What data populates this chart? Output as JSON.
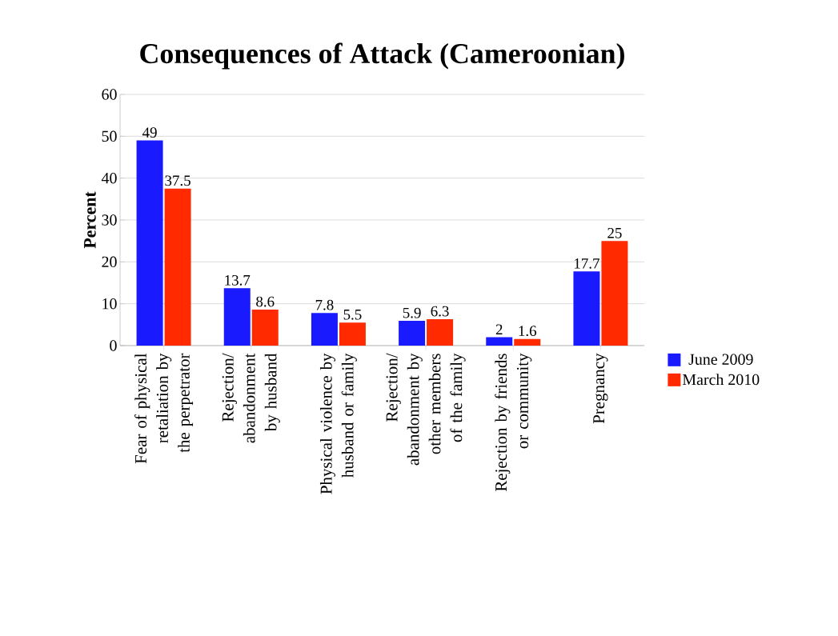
{
  "chart_data": {
    "type": "bar",
    "title": "Consequences of Attack (Cameroonian)",
    "ylabel": "Percent",
    "categories": [
      "Fear of physical retaliation by the perpetrator",
      "Rejection/ abandonment by husband",
      "Physical violence by husband or family",
      "Rejection/ abandonment by other members of the family",
      "Rejection by friends or community",
      "Pregnancy"
    ],
    "series": [
      {
        "name": "June 2009",
        "color": "#1a1aff",
        "values": [
          49,
          13.7,
          7.8,
          5.9,
          2,
          17.7
        ]
      },
      {
        "name": "March 2010",
        "color": "#ff2a00",
        "values": [
          37.5,
          8.6,
          5.5,
          6.3,
          1.6,
          25
        ]
      }
    ],
    "ylim": [
      0,
      60
    ],
    "yticks": [
      0,
      10,
      20,
      30,
      40,
      50,
      60
    ],
    "grid": "y",
    "legend": "right",
    "data_labels": true
  }
}
